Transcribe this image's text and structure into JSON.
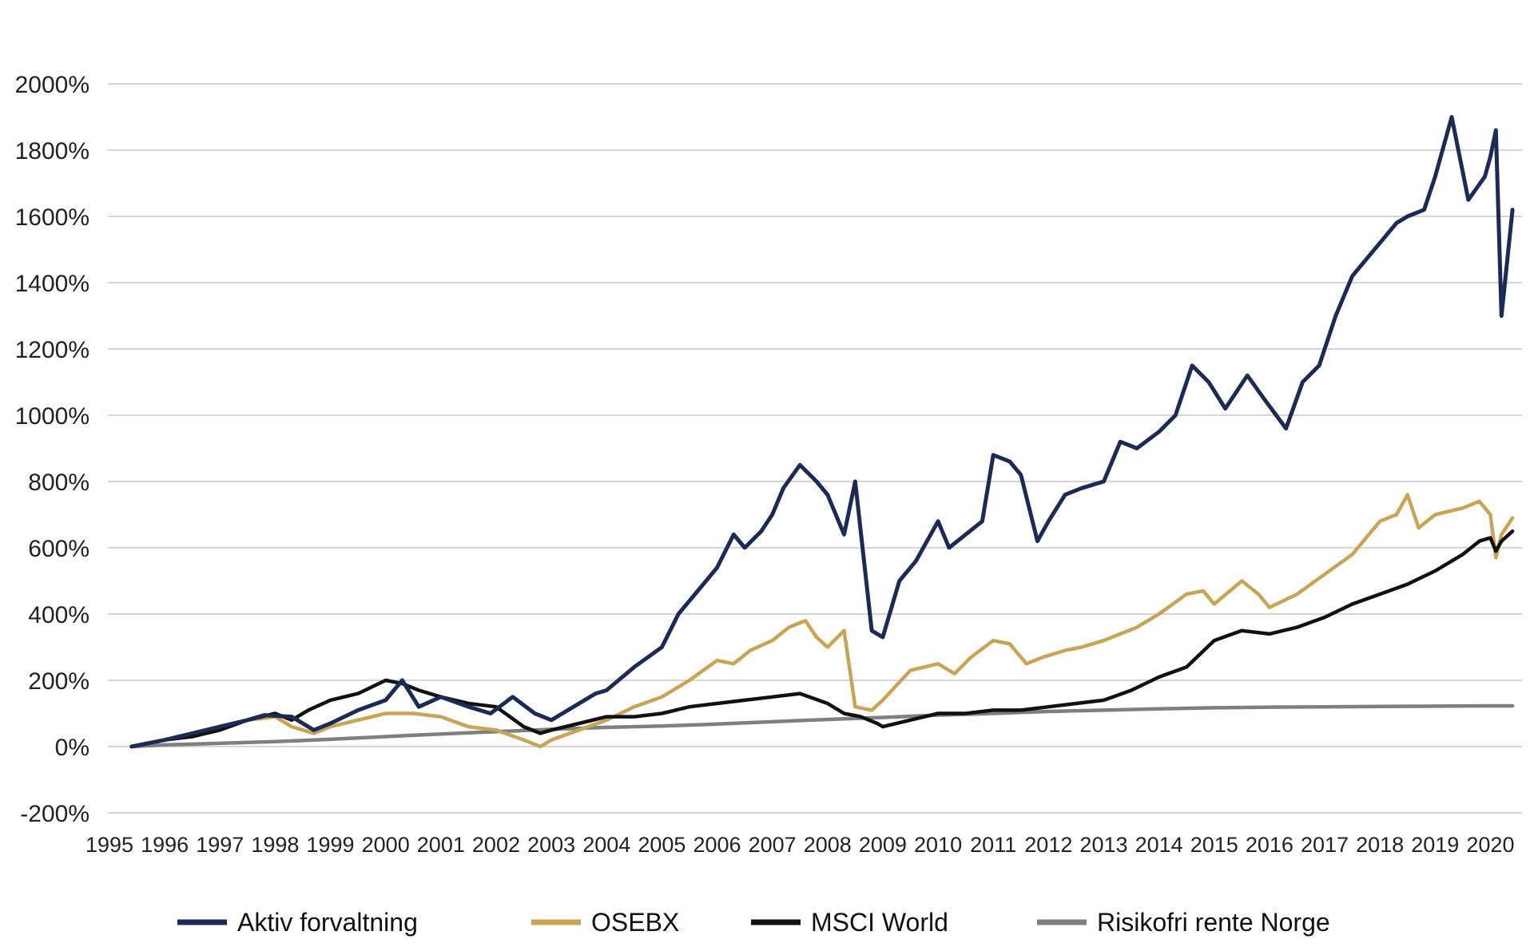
{
  "chart_data": {
    "type": "line",
    "title": "",
    "xlabel": "",
    "ylabel": "",
    "xlim": [
      1995,
      2020.5
    ],
    "ylim": [
      -200,
      2000
    ],
    "y_ticks": [
      -200,
      0,
      200,
      400,
      600,
      800,
      1000,
      1200,
      1400,
      1600,
      1800,
      2000
    ],
    "y_tick_labels": [
      "-200%",
      "0%",
      "200%",
      "400%",
      "600%",
      "800%",
      "1000%",
      "1200%",
      "1400%",
      "1600%",
      "1800%",
      "2000%"
    ],
    "x_ticks": [
      1995,
      1996,
      1997,
      1998,
      1999,
      2000,
      2001,
      2002,
      2003,
      2004,
      2005,
      2006,
      2007,
      2008,
      2009,
      2010,
      2011,
      2012,
      2013,
      2014,
      2015,
      2016,
      2017,
      2018,
      2019,
      2020
    ],
    "x_tick_labels": [
      "1995",
      "1996",
      "1997",
      "1998",
      "1999",
      "2000",
      "2001",
      "2002",
      "2003",
      "2004",
      "2005",
      "2006",
      "2007",
      "2008",
      "2009",
      "2010",
      "2011",
      "2012",
      "2013",
      "2014",
      "2015",
      "2016",
      "2017",
      "2018",
      "2019",
      "2020"
    ],
    "grid": "horizontal",
    "legend_position": "bottom",
    "series": [
      {
        "name": "Aktiv forvaltning",
        "color": "#1c2a56",
        "x": [
          1995.4,
          1996.0,
          1996.5,
          1997.0,
          1997.5,
          1997.8,
          1998.3,
          1998.7,
          1999.0,
          1999.5,
          2000.0,
          2000.3,
          2000.6,
          2001.0,
          2001.5,
          2001.9,
          2002.3,
          2002.7,
          2003.0,
          2003.4,
          2003.8,
          2004.0,
          2004.5,
          2005.0,
          2005.3,
          2005.6,
          2006.0,
          2006.3,
          2006.5,
          2006.8,
          2007.0,
          2007.2,
          2007.5,
          2007.8,
          2008.0,
          2008.3,
          2008.5,
          2008.8,
          2009.0,
          2009.3,
          2009.6,
          2010.0,
          2010.2,
          2010.5,
          2010.8,
          2011.0,
          2011.3,
          2011.5,
          2011.8,
          2012.0,
          2012.3,
          2012.6,
          2013.0,
          2013.3,
          2013.6,
          2014.0,
          2014.3,
          2014.6,
          2014.9,
          2015.2,
          2015.6,
          2015.9,
          2016.3,
          2016.6,
          2016.9,
          2017.2,
          2017.5,
          2017.8,
          2018.0,
          2018.3,
          2018.5,
          2018.8,
          2019.0,
          2019.3,
          2019.6,
          2019.9,
          2020.0,
          2020.1,
          2020.2,
          2020.4
        ],
        "values": [
          0,
          20,
          40,
          60,
          80,
          95,
          90,
          50,
          70,
          110,
          140,
          200,
          120,
          150,
          120,
          100,
          150,
          100,
          80,
          120,
          160,
          170,
          240,
          300,
          400,
          460,
          540,
          640,
          600,
          650,
          700,
          780,
          850,
          800,
          760,
          640,
          800,
          350,
          330,
          500,
          560,
          680,
          600,
          640,
          680,
          880,
          860,
          820,
          620,
          680,
          760,
          780,
          800,
          920,
          900,
          950,
          1000,
          1150,
          1100,
          1020,
          1120,
          1050,
          960,
          1100,
          1150,
          1300,
          1420,
          1480,
          1520,
          1580,
          1600,
          1620,
          1720,
          1900,
          1650,
          1720,
          1780,
          1860,
          1300,
          1620
        ]
      },
      {
        "name": "OSEBX",
        "color": "#c8a456",
        "x": [
          1995.4,
          1996.0,
          1996.5,
          1997.0,
          1997.5,
          1998.0,
          1998.3,
          1998.7,
          1999.0,
          1999.5,
          2000.0,
          2000.5,
          2001.0,
          2001.5,
          2002.0,
          2002.5,
          2002.8,
          2003.0,
          2003.5,
          2004.0,
          2004.5,
          2005.0,
          2005.5,
          2006.0,
          2006.3,
          2006.6,
          2007.0,
          2007.3,
          2007.6,
          2007.8,
          2008.0,
          2008.3,
          2008.5,
          2008.8,
          2009.0,
          2009.5,
          2010.0,
          2010.3,
          2010.6,
          2011.0,
          2011.3,
          2011.6,
          2011.9,
          2012.3,
          2012.6,
          2013.0,
          2013.3,
          2013.6,
          2014.0,
          2014.5,
          2014.8,
          2015.0,
          2015.5,
          2015.8,
          2016.0,
          2016.5,
          2017.0,
          2017.5,
          2017.8,
          2018.0,
          2018.3,
          2018.5,
          2018.7,
          2019.0,
          2019.5,
          2019.8,
          2020.0,
          2020.1,
          2020.2,
          2020.4
        ],
        "values": [
          0,
          20,
          40,
          60,
          80,
          90,
          60,
          40,
          60,
          80,
          100,
          100,
          90,
          60,
          50,
          20,
          0,
          20,
          50,
          80,
          120,
          150,
          200,
          260,
          250,
          290,
          320,
          360,
          380,
          330,
          300,
          350,
          120,
          110,
          140,
          230,
          250,
          220,
          270,
          320,
          310,
          250,
          270,
          290,
          300,
          320,
          340,
          360,
          400,
          460,
          470,
          430,
          500,
          460,
          420,
          460,
          520,
          580,
          640,
          680,
          700,
          760,
          660,
          700,
          720,
          740,
          700,
          570,
          640,
          690
        ]
      },
      {
        "name": "MSCI World",
        "color": "#111111",
        "x": [
          1995.4,
          1996.0,
          1996.5,
          1997.0,
          1997.5,
          1998.0,
          1998.3,
          1998.6,
          1999.0,
          1999.5,
          2000.0,
          2000.3,
          2000.6,
          2001.0,
          2001.5,
          2002.0,
          2002.5,
          2002.8,
          2003.0,
          2003.5,
          2004.0,
          2004.5,
          2005.0,
          2005.5,
          2006.0,
          2006.5,
          2007.0,
          2007.5,
          2008.0,
          2008.3,
          2008.6,
          2008.9,
          2009.0,
          2009.5,
          2010.0,
          2010.5,
          2011.0,
          2011.5,
          2012.0,
          2012.5,
          2013.0,
          2013.5,
          2014.0,
          2014.5,
          2015.0,
          2015.5,
          2016.0,
          2016.5,
          2017.0,
          2017.5,
          2018.0,
          2018.5,
          2019.0,
          2019.5,
          2019.8,
          2020.0,
          2020.1,
          2020.2,
          2020.4
        ],
        "values": [
          0,
          20,
          30,
          50,
          80,
          100,
          80,
          110,
          140,
          160,
          200,
          190,
          170,
          150,
          130,
          120,
          60,
          40,
          50,
          70,
          90,
          90,
          100,
          120,
          130,
          140,
          150,
          160,
          130,
          100,
          90,
          70,
          60,
          80,
          100,
          100,
          110,
          110,
          120,
          130,
          140,
          170,
          210,
          240,
          320,
          350,
          340,
          360,
          390,
          430,
          460,
          490,
          530,
          580,
          620,
          630,
          590,
          620,
          650
        ]
      },
      {
        "name": "Risikofri rente Norge",
        "color": "#7f7f7f",
        "x": [
          1995.4,
          1996.0,
          1997.0,
          1998.0,
          1999.0,
          2000.0,
          2001.0,
          2002.0,
          2003.0,
          2004.0,
          2005.0,
          2006.0,
          2007.0,
          2008.0,
          2009.0,
          2010.0,
          2011.0,
          2012.0,
          2013.0,
          2014.0,
          2015.0,
          2016.0,
          2017.0,
          2018.0,
          2019.0,
          2020.0,
          2020.4
        ],
        "values": [
          0,
          5,
          10,
          15,
          22,
          30,
          38,
          45,
          52,
          58,
          62,
          68,
          75,
          82,
          88,
          95,
          100,
          106,
          110,
          114,
          117,
          119,
          120,
          121,
          122,
          123,
          123
        ]
      }
    ]
  }
}
